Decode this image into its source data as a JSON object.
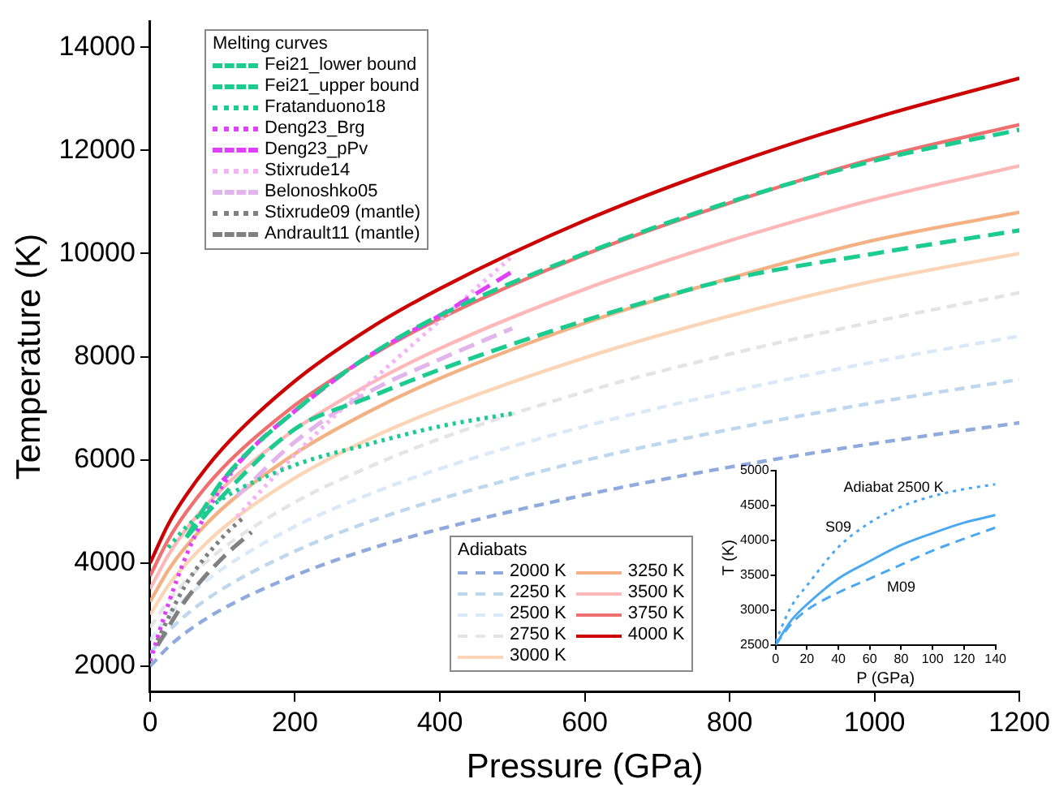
{
  "chart_data": [
    {
      "type": "line",
      "xlabel": "Pressure (GPa)",
      "ylabel": "Temperature (K)",
      "legend_title": "Melting curves",
      "annotations": [
        "Adiabats"
      ],
      "legend": "left",
      "xlim": [
        0,
        1200
      ],
      "xticks": [
        0,
        200,
        400,
        600,
        800,
        1000,
        1200
      ],
      "ylim": [
        1500,
        14500
      ],
      "yticks": [
        2000,
        4000,
        6000,
        8000,
        10000,
        12000,
        14000
      ],
      "x": [
        0,
        25,
        50,
        100,
        200,
        300,
        400,
        600,
        800,
        1000,
        1200
      ],
      "series": [
        {
          "name": "Fei21_lower bound",
          "color": "#1ccc8e",
          "line_style": "dashed",
          "x": [
            50,
            100,
            200,
            300,
            400,
            600,
            800,
            1000,
            1200
          ],
          "values": [
            4500,
            5300,
            6600,
            7200,
            7750,
            8700,
            9500,
            10000,
            10450
          ]
        },
        {
          "name": "Fei21_upper bound",
          "color": "#1ccc8e",
          "line_style": "dashed",
          "x": [
            50,
            100,
            200,
            300,
            400,
            600,
            800,
            1000,
            1200
          ],
          "values": [
            4500,
            5600,
            6950,
            8000,
            8800,
            10000,
            11000,
            11800,
            12400
          ]
        },
        {
          "name": "Fratanduono18",
          "color": "#1ccc8e",
          "line_style": "dotted",
          "x": [
            25,
            50,
            100,
            200,
            300,
            400,
            500
          ],
          "values": [
            4300,
            4700,
            5250,
            5900,
            6300,
            6650,
            6900
          ]
        },
        {
          "name": "Deng23_Brg",
          "color": "#e040fb",
          "line_style": "dotted",
          "x": [
            0,
            25,
            50,
            75,
            100,
            130
          ],
          "values": [
            2100,
            3200,
            4150,
            4900,
            5500,
            6100
          ]
        },
        {
          "name": "Deng23_pPv",
          "color": "#e040fb",
          "line_style": "dashed",
          "x": [
            100,
            150,
            200,
            250,
            300,
            400,
            500
          ],
          "values": [
            5600,
            6350,
            6950,
            7500,
            8000,
            8800,
            9650
          ]
        },
        {
          "name": "Stixrude14",
          "color": "#f4b4f4",
          "line_style": "dotted",
          "x": [
            120,
            200,
            300,
            400,
            500
          ],
          "values": [
            4900,
            6100,
            7450,
            8700,
            9950
          ]
        },
        {
          "name": "Belonoshko05",
          "color": "#e2b4ec",
          "line_style": "dashed",
          "x": [
            120,
            200,
            300,
            400,
            500
          ],
          "values": [
            5300,
            6350,
            7300,
            7950,
            8550
          ]
        },
        {
          "name": "Stixrude09 (mantle)",
          "color": "#808080",
          "line_style": "dotted",
          "x": [
            10,
            50,
            100,
            130
          ],
          "values": [
            2500,
            3600,
            4500,
            4900
          ]
        },
        {
          "name": "Andrault11 (mantle)",
          "color": "#808080",
          "line_style": "dashed",
          "x": [
            10,
            50,
            100,
            140
          ],
          "values": [
            2400,
            3300,
            4100,
            4600
          ]
        },
        {
          "name": "2000 K",
          "color": "#8faadc",
          "line_style": "dashed",
          "values": [
            2000,
            2370,
            2660,
            3110,
            3760,
            4260,
            4660,
            5320,
            5860,
            6320,
            6720
          ]
        },
        {
          "name": "2250 K",
          "color": "#bdd7ee",
          "line_style": "dashed",
          "values": [
            2250,
            2670,
            3000,
            3500,
            4230,
            4790,
            5240,
            5990,
            6590,
            7110,
            7560
          ]
        },
        {
          "name": "2500 K",
          "color": "#dae9f8",
          "line_style": "dashed",
          "values": [
            2500,
            2970,
            3330,
            3890,
            4710,
            5320,
            5830,
            6650,
            7320,
            7900,
            8400
          ]
        },
        {
          "name": "2750 K",
          "color": "#e4e4e4",
          "line_style": "dashed",
          "values": [
            2750,
            3260,
            3660,
            4280,
            5180,
            5850,
            6410,
            7320,
            8050,
            8680,
            9240
          ]
        },
        {
          "name": "3000 K",
          "color": "#fbd5b5",
          "line_style": "solid",
          "values": [
            3000,
            3560,
            3990,
            4670,
            5650,
            6390,
            6990,
            7980,
            8790,
            9470,
            10000
          ]
        },
        {
          "name": "3250 K",
          "color": "#f4b183",
          "line_style": "solid",
          "values": [
            3250,
            3860,
            4330,
            5060,
            6120,
            6920,
            7580,
            8650,
            9520,
            10260,
            10800
          ]
        },
        {
          "name": "3500 K",
          "color": "#ffb8b8",
          "line_style": "solid",
          "values": [
            3500,
            4150,
            4660,
            5450,
            6590,
            7450,
            8160,
            9310,
            10250,
            11050,
            11700
          ]
        },
        {
          "name": "3750 K",
          "color": "#f07070",
          "line_style": "solid",
          "values": [
            3750,
            4450,
            4990,
            5840,
            7060,
            7980,
            8740,
            9980,
            10980,
            11840,
            12500
          ]
        },
        {
          "name": "4000 K",
          "color": "#cc0000",
          "line_style": "solid",
          "values": [
            4000,
            4750,
            5320,
            6220,
            7530,
            8520,
            9320,
            10640,
            11720,
            12630,
            13400
          ]
        }
      ]
    },
    {
      "type": "line",
      "title": "Adiabat 2500 K",
      "xlabel": "P (GPa)",
      "ylabel": "T (K)",
      "xlim": [
        0,
        140
      ],
      "xticks": [
        0,
        20,
        40,
        60,
        80,
        100,
        120,
        140
      ],
      "ylim": [
        2500,
        5000
      ],
      "yticks": [
        2500,
        3000,
        3500,
        4000,
        4500,
        5000
      ],
      "x": [
        0,
        10,
        20,
        40,
        60,
        80,
        100,
        120,
        140
      ],
      "series": [
        {
          "name": "S09",
          "color": "#4aa8f0",
          "line_style": "dotted",
          "values": [
            2550,
            3050,
            3350,
            3900,
            4250,
            4480,
            4630,
            4730,
            4800
          ]
        },
        {
          "color": "#4aa8f0",
          "line_style": "solid",
          "values": [
            2500,
            2850,
            3080,
            3450,
            3700,
            3930,
            4100,
            4250,
            4360
          ]
        },
        {
          "name": "M09",
          "color": "#4aa8f0",
          "line_style": "dashed",
          "values": [
            2500,
            2800,
            3000,
            3250,
            3450,
            3650,
            3850,
            4020,
            4180
          ]
        }
      ]
    }
  ]
}
